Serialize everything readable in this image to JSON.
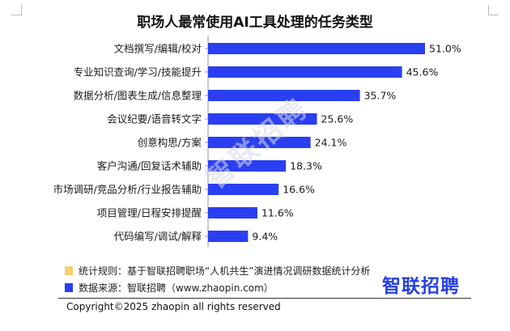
{
  "header": {
    "title": "职场人最常使用AI工具处理的任务类型"
  },
  "chart_data": {
    "type": "bar",
    "orientation": "horizontal",
    "categories": [
      "文档撰写/编辑/校对",
      "专业知识查询/学习/技能提升",
      "数据分析/图表生成/信息整理",
      "会议纪要/语音转文字",
      "创意构思/方案",
      "客户沟通/回复话术辅助",
      "市场调研/竞品分析/行业报告辅助",
      "项目管理/日程安排提醒",
      "代码编写/调试/解释"
    ],
    "values": [
      51.0,
      45.6,
      35.7,
      25.6,
      24.1,
      18.3,
      16.6,
      11.6,
      9.4
    ],
    "value_labels": [
      "51.0%",
      "45.6%",
      "35.7%",
      "25.6%",
      "24.1%",
      "18.3%",
      "16.6%",
      "11.6%",
      "9.4%"
    ],
    "unit": "%",
    "xlim": [
      0,
      51.0
    ],
    "title": "职场人最常使用AI工具处理的任务类型",
    "bar_color": "#2b3ff2",
    "grid": false
  },
  "notes": {
    "method": "统计规则：基于智联招聘职场“人机共生”演进情况调研数据统计分析",
    "source": "数据来源：智联招聘（www.zhaopin.com）",
    "method_marker_color": "#f7d26a",
    "source_marker_color": "#2b3ff2"
  },
  "brand": {
    "logo_text": "智联招聘",
    "watermark_text": "智联招聘",
    "color": "#2740e6"
  },
  "footer": {
    "copyright": "Copyright©2025 zhaopin all rights reserved"
  }
}
